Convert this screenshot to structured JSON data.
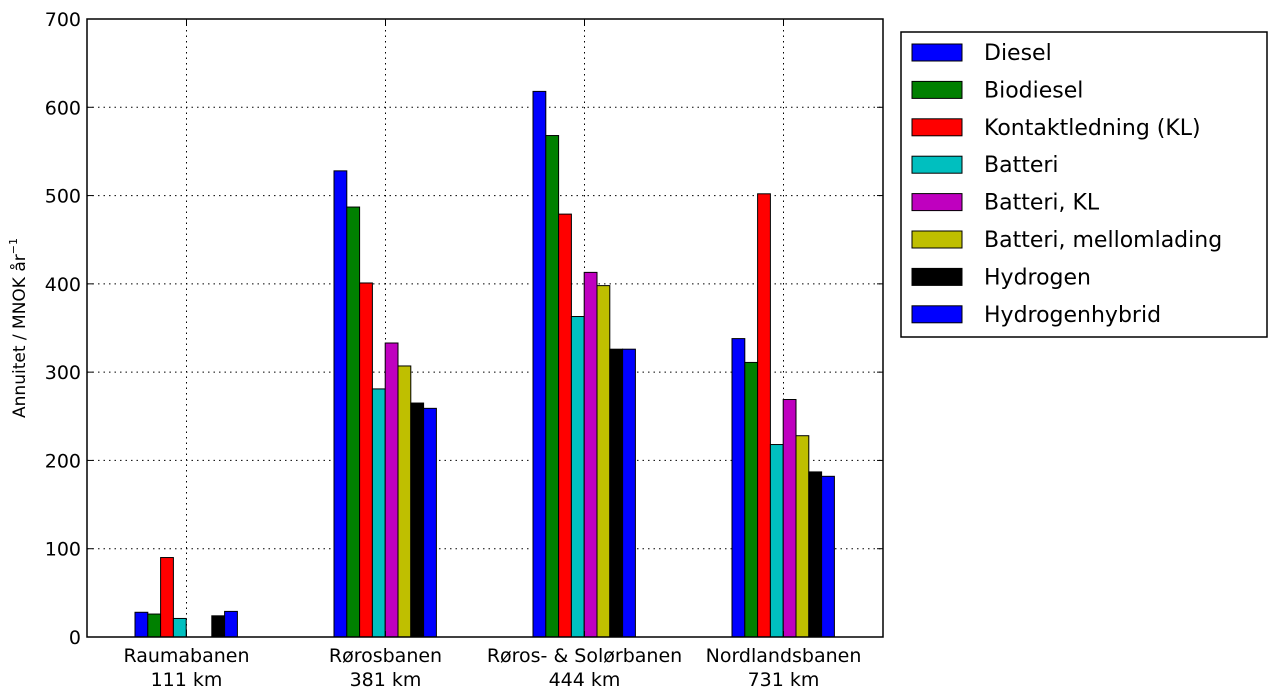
{
  "chart_data": {
    "type": "bar",
    "categories": [
      "Raumabanen\n111 km",
      "Rørosbanen\n381 km",
      "Røros- & Solørbanen\n444 km",
      "Nordlandsbanen\n731 km"
    ],
    "ylabel": "Annuitet / MNOK år",
    "ylabel_superscript": "−1",
    "ylim": [
      0,
      700
    ],
    "yticks": [
      0,
      100,
      200,
      300,
      400,
      500,
      600,
      700
    ],
    "grid": true,
    "legend_position": "outside-right",
    "series": [
      {
        "name": "Diesel",
        "color": "#0000ff",
        "values": [
          28,
          528,
          618,
          338
        ]
      },
      {
        "name": "Biodiesel",
        "color": "#008000",
        "values": [
          26,
          487,
          568,
          311
        ]
      },
      {
        "name": "Kontaktledning (KL)",
        "color": "#ff0000",
        "values": [
          90,
          401,
          479,
          502
        ]
      },
      {
        "name": "Batteri",
        "color": "#00bfbf",
        "values": [
          21,
          281,
          363,
          218
        ]
      },
      {
        "name": "Batteri, KL",
        "color": "#bf00bf",
        "values": [
          0,
          333,
          413,
          269
        ]
      },
      {
        "name": "Batteri, mellomlading",
        "color": "#bfbf00",
        "values": [
          0,
          307,
          398,
          228
        ]
      },
      {
        "name": "Hydrogen",
        "color": "#000000",
        "values": [
          24,
          265,
          326,
          187
        ]
      },
      {
        "name": "Hydrogenhybrid",
        "color": "#0000ff",
        "values": [
          29,
          259,
          326,
          182
        ]
      }
    ]
  }
}
